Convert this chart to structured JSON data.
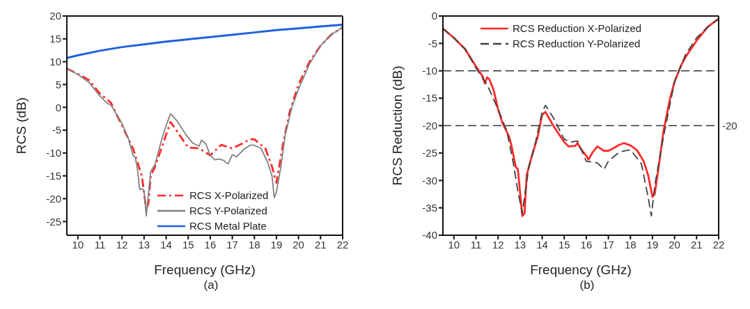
{
  "chart_data": [
    {
      "type": "line",
      "xlabel": "Frequency (GHz)",
      "ylabel": "RCS (dB)",
      "annotations": [
        "(a)"
      ],
      "xlim": [
        9.5,
        22
      ],
      "xticks": [
        10,
        11,
        12,
        13,
        14,
        15,
        16,
        17,
        18,
        19,
        20,
        21,
        22
      ],
      "ylim": [
        -28,
        20
      ],
      "yticks": [
        -25,
        -20,
        -15,
        -10,
        -5,
        0,
        5,
        10,
        15,
        20
      ],
      "grid": false,
      "legend": "bottom",
      "marker": "none",
      "series": [
        {
          "name": "RCS X-Polarized",
          "color": "#ff2a2a",
          "line_style": "dashdot",
          "x": [
            9.5,
            10,
            10.5,
            11,
            11.5,
            12,
            12.5,
            12.9,
            13.1,
            13.2,
            13.3,
            13.5,
            14,
            14.2,
            14.6,
            15,
            15.5,
            16,
            16.5,
            17,
            17.5,
            17.8,
            18,
            18.5,
            18.8,
            19,
            19.3,
            19.6,
            20,
            20.5,
            21,
            21.5,
            22
          ],
          "values": [
            8.5,
            7.3,
            6,
            3,
            1,
            -4,
            -9,
            -15,
            -22.5,
            -21,
            -15,
            -13,
            -6,
            -3.2,
            -6,
            -8.8,
            -9,
            -10.5,
            -8.2,
            -9,
            -7.8,
            -7,
            -7,
            -9,
            -13,
            -16.5,
            -8,
            -1,
            5,
            10,
            13.5,
            16,
            17.5
          ]
        },
        {
          "name": "RCS Y-Polarized",
          "color": "#808080",
          "line_style": "solid",
          "x": [
            9.5,
            10,
            10.5,
            11,
            11.3,
            11.5,
            12,
            12.3,
            12.5,
            12.6,
            12.7,
            12.8,
            12.9,
            13,
            13.1,
            13.2,
            13.3,
            13.5,
            13.8,
            14,
            14.2,
            14.5,
            14.9,
            15.2,
            15.5,
            15.6,
            15.8,
            16,
            16.2,
            16.4,
            16.6,
            16.8,
            17,
            17.2,
            17.5,
            17.8,
            18,
            18.3,
            18.6,
            18.8,
            18.9,
            19,
            19.2,
            19.4,
            19.7,
            20,
            20.5,
            21,
            21.5,
            22
          ],
          "values": [
            8.5,
            7.2,
            5.5,
            2.5,
            1,
            0.5,
            -3.5,
            -7,
            -10.5,
            -11,
            -13.5,
            -18,
            -17.8,
            -18.2,
            -23.8,
            -19,
            -14,
            -12.5,
            -7,
            -4,
            -1.4,
            -3,
            -6,
            -7.8,
            -8.5,
            -7.2,
            -8,
            -10.5,
            -11.5,
            -11.3,
            -11.6,
            -12.4,
            -10.4,
            -10.8,
            -9.3,
            -8.3,
            -8.3,
            -9,
            -12,
            -15,
            -19.8,
            -18.5,
            -13,
            -6,
            0,
            4,
            9.5,
            13.5,
            16,
            17.5
          ]
        },
        {
          "name": "RCS Metal Plate",
          "color": "#1f5fe0",
          "line_style": "solid",
          "x": [
            9.5,
            10,
            11,
            12,
            13,
            14,
            15,
            16,
            17,
            18,
            19,
            20,
            21,
            22
          ],
          "values": [
            10.8,
            11.4,
            12.4,
            13.2,
            13.8,
            14.4,
            14.9,
            15.4,
            15.9,
            16.4,
            16.9,
            17.3,
            17.7,
            18.1
          ]
        }
      ]
    },
    {
      "type": "line",
      "xlabel": "Frequency (GHz)",
      "ylabel": "RCS Reduction (dB)",
      "annotations": [
        "(b)"
      ],
      "xlim": [
        9.5,
        22
      ],
      "xticks": [
        10,
        11,
        12,
        13,
        14,
        15,
        16,
        17,
        18,
        19,
        20,
        21,
        22
      ],
      "ylim": [
        -40,
        0
      ],
      "yticks": [
        -40,
        -35,
        -30,
        -25,
        -20,
        -15,
        -10,
        -5,
        0
      ],
      "grid": false,
      "legend": "top",
      "marker": "none",
      "ref_lines": [
        {
          "axis": "y",
          "value": -10,
          "label": null,
          "color": "#333333",
          "line_style": "dashed"
        },
        {
          "axis": "y",
          "value": -20,
          "label": "-20",
          "color": "#333333",
          "line_style": "dashed"
        }
      ],
      "series": [
        {
          "name": "RCS Reduction X-Polarized",
          "color": "#ff2a2a",
          "line_style": "solid",
          "x": [
            9.5,
            10,
            10.5,
            11,
            11.3,
            11.4,
            11.5,
            11.6,
            11.8,
            12,
            12.2,
            12.5,
            12.6,
            12.8,
            12.9,
            13.1,
            13.2,
            13.3,
            13.5,
            13.8,
            14,
            14.15,
            14.5,
            15,
            15.2,
            15.5,
            15.6,
            15.8,
            16,
            16.1,
            16.3,
            16.5,
            16.8,
            17,
            17.2,
            17.5,
            17.7,
            18,
            18.3,
            18.6,
            18.8,
            19,
            19.1,
            19.3,
            19.5,
            19.8,
            20,
            20.3,
            20.5,
            21,
            21.5,
            22
          ],
          "values": [
            -2.3,
            -4,
            -6,
            -9.2,
            -11,
            -12.3,
            -11.2,
            -11.5,
            -13.5,
            -17,
            -19.5,
            -22,
            -23.5,
            -27.5,
            -28,
            -36.5,
            -36,
            -29,
            -26,
            -22,
            -18,
            -17.5,
            -20,
            -23,
            -23.8,
            -23.7,
            -23.2,
            -24.5,
            -25.5,
            -26.2,
            -24.8,
            -23.8,
            -24.6,
            -24.6,
            -24.2,
            -23.5,
            -23.2,
            -23.6,
            -24.5,
            -26.5,
            -29,
            -33,
            -32.5,
            -27,
            -21,
            -15,
            -12,
            -9,
            -7.5,
            -4.5,
            -2,
            -0.5
          ]
        },
        {
          "name": "RCS Reduction Y-Polarized",
          "color": "#404040",
          "line_style": "dashed",
          "x": [
            9.5,
            10,
            10.5,
            11,
            11.5,
            12,
            12.4,
            12.7,
            12.9,
            13.1,
            13.2,
            13.4,
            13.7,
            14,
            14.15,
            14.5,
            15,
            15.3,
            15.6,
            16,
            16.5,
            16.8,
            17,
            17.5,
            18,
            18.5,
            18.8,
            18.95,
            19.1,
            19.5,
            20,
            20.5,
            21,
            21.5,
            22
          ],
          "values": [
            -2.3,
            -4,
            -6,
            -9.5,
            -12.5,
            -17,
            -21,
            -27,
            -32,
            -36,
            -33,
            -27.5,
            -23,
            -17.5,
            -16.3,
            -18.5,
            -22.5,
            -23,
            -22.8,
            -26.5,
            -26.8,
            -28,
            -26.5,
            -24.8,
            -24.4,
            -27,
            -33,
            -36.5,
            -31,
            -22,
            -12,
            -7,
            -4,
            -2,
            -0.5
          ]
        }
      ]
    }
  ]
}
